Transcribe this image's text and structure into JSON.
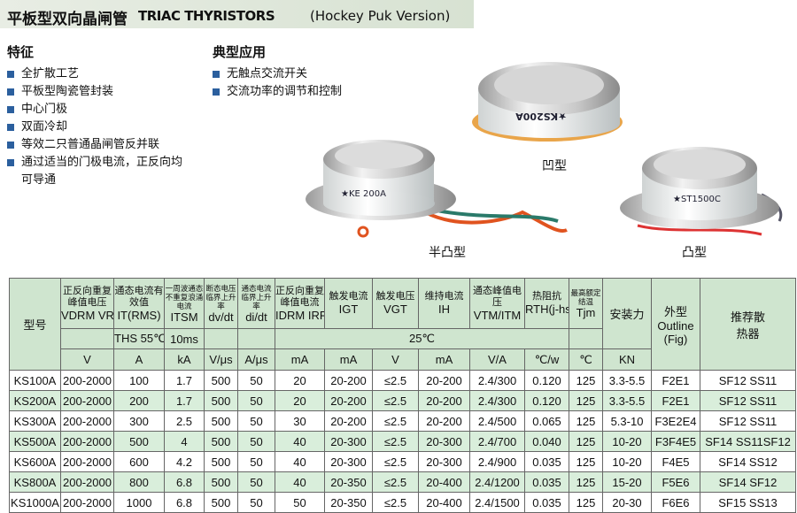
{
  "header": {
    "title_cn": "平板型双向晶闸管",
    "title_en": "TRIAC THYRISTORS",
    "title_note": "(Hockey Puk Version)"
  },
  "features": {
    "title": "特征",
    "items": [
      "全扩散工艺",
      "平板型陶瓷管封装",
      "中心门极",
      "双面冷却",
      "等效二只普通晶闸管反并联",
      "通过适当的门极电流，正反向均可导通"
    ]
  },
  "applications": {
    "title": "典型应用",
    "items": [
      "无触点交流开关",
      "交流功率的调节和控制"
    ]
  },
  "images": {
    "labels": [
      "凹型",
      "半凸型",
      "凸型"
    ]
  },
  "table": {
    "columns": [
      {
        "name": "型号"
      },
      {
        "name": "正反向重复峰值电压",
        "symbol": "VDRM VRRM",
        "unit": "V"
      },
      {
        "name": "通态电流有效值",
        "symbol": "IT(RMS)",
        "cond": "THS 55℃",
        "unit": "A"
      },
      {
        "name": "一周波通态不重复浪涌电流",
        "symbol": "ITSM",
        "cond": "10ms",
        "unit": "kA"
      },
      {
        "name": "断态电压临界上升率",
        "symbol": "dv/dt",
        "unit": "V/μs"
      },
      {
        "name": "通态电流临界上升率",
        "symbol": "di/dt",
        "unit": "A/μs"
      },
      {
        "name": "正反向重复峰值电流",
        "symbol": "IDRM IRRM",
        "unit": "mA"
      },
      {
        "name": "触发电流",
        "symbol": "IGT",
        "unit": "mA"
      },
      {
        "name": "触发电压",
        "symbol": "VGT",
        "unit": "V"
      },
      {
        "name": "维持电流",
        "symbol": "IH",
        "unit": "mA"
      },
      {
        "name": "通态峰值电压",
        "symbol": "VTM/ITM",
        "unit": "V/A"
      },
      {
        "name": "热阻抗",
        "symbol": "RTH(j-hs)",
        "unit": "℃/w"
      },
      {
        "name": "最高额定结温",
        "symbol": "Tjm",
        "unit": "℃"
      },
      {
        "name": "安装力",
        "unit": "KN"
      },
      {
        "name": "外型",
        "symbol": "Outline",
        "cond": "(Fig)"
      },
      {
        "name": "推荐散热器"
      }
    ],
    "common_cond": "25℃",
    "rows": [
      [
        "KS100A",
        "200-2000",
        "100",
        "1.7",
        "500",
        "50",
        "20",
        "20-200",
        "≤2.5",
        "20-200",
        "2.4/300",
        "0.120",
        "125",
        "3.3-5.5",
        "F2E1",
        "SF12 SS11"
      ],
      [
        "KS200A",
        "200-2000",
        "200",
        "1.7",
        "500",
        "50",
        "20",
        "20-200",
        "≤2.5",
        "20-200",
        "2.4/300",
        "0.120",
        "125",
        "3.3-5.5",
        "F2E1",
        "SF12 SS11"
      ],
      [
        "KS300A",
        "200-2000",
        "300",
        "2.5",
        "500",
        "50",
        "30",
        "20-200",
        "≤2.5",
        "20-200",
        "2.4/500",
        "0.065",
        "125",
        "5.3-10",
        "F3E2E4",
        "SF12 SS11"
      ],
      [
        "KS500A",
        "200-2000",
        "500",
        "4",
        "500",
        "50",
        "40",
        "20-300",
        "≤2.5",
        "20-300",
        "2.4/700",
        "0.040",
        "125",
        "10-20",
        "F3F4E5",
        "SF14 SS11SF12"
      ],
      [
        "KS600A",
        "200-2000",
        "600",
        "4.2",
        "500",
        "50",
        "40",
        "20-300",
        "≤2.5",
        "20-300",
        "2.4/900",
        "0.035",
        "125",
        "10-20",
        "F4E5",
        "SF14 SS12"
      ],
      [
        "KS800A",
        "200-2000",
        "800",
        "6.8",
        "500",
        "50",
        "40",
        "20-350",
        "≤2.5",
        "20-400",
        "2.4/1200",
        "0.035",
        "125",
        "15-20",
        "F5E6",
        "SF14 SF12"
      ],
      [
        "KS1000A",
        "200-2000",
        "1000",
        "6.8",
        "500",
        "50",
        "50",
        "20-350",
        "≤2.5",
        "20-400",
        "2.4/1500",
        "0.035",
        "125",
        "20-30",
        "F6E6",
        "SF15 SS13"
      ]
    ]
  }
}
